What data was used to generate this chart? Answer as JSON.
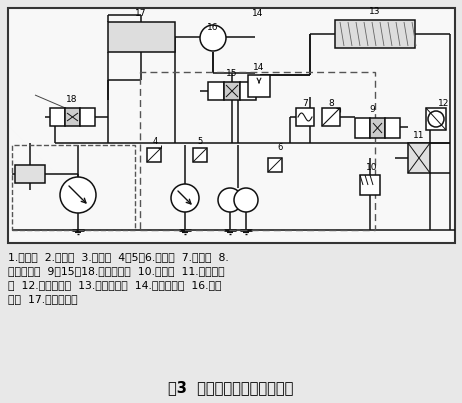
{
  "title": "图3  凿岩机新型液压控制系统",
  "caption_line1": "1.推进泵  2.回转泵  3.冲击泵  4、5、6.溢流阀  7.节流阀  8.",
  "caption_line2": "遥控减压鄀  9、15、18.手动换向鄀  10.先导鄀  11.液动换向",
  "caption_line3": "鄀  12.单向节流鄀  13.推进液压缸  14.高速开关鄀  16.回转",
  "caption_line4": "马达  17.液压凿岩机",
  "bg_color": "#e8e8e8",
  "diagram_bg": "#f0f0f0",
  "lc": "#111111"
}
